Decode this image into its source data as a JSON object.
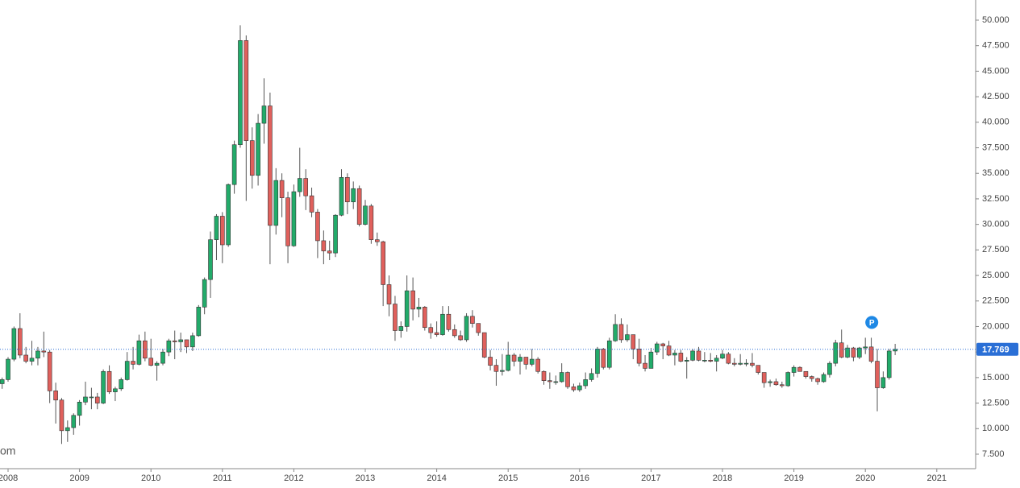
{
  "chart_data": {
    "type": "candlestick",
    "x": [
      2007.917,
      2008,
      2008.083,
      2008.167,
      2008.25,
      2008.333,
      2008.417,
      2008.5,
      2008.583,
      2008.667,
      2008.75,
      2008.833,
      2008.917,
      2009,
      2009.083,
      2009.167,
      2009.25,
      2009.333,
      2009.417,
      2009.5,
      2009.583,
      2009.667,
      2009.75,
      2009.833,
      2009.917,
      2010,
      2010.083,
      2010.167,
      2010.25,
      2010.333,
      2010.417,
      2010.5,
      2010.583,
      2010.667,
      2010.75,
      2010.833,
      2010.917,
      2011,
      2011.083,
      2011.167,
      2011.25,
      2011.333,
      2011.417,
      2011.5,
      2011.583,
      2011.667,
      2011.75,
      2011.833,
      2011.917,
      2012,
      2012.083,
      2012.167,
      2012.25,
      2012.333,
      2012.417,
      2012.5,
      2012.583,
      2012.667,
      2012.75,
      2012.833,
      2012.917,
      2013,
      2013.083,
      2013.167,
      2013.25,
      2013.333,
      2013.417,
      2013.5,
      2013.583,
      2013.667,
      2013.75,
      2013.833,
      2013.917,
      2014,
      2014.083,
      2014.167,
      2014.25,
      2014.333,
      2014.417,
      2014.5,
      2014.583,
      2014.667,
      2014.75,
      2014.833,
      2014.917,
      2015,
      2015.083,
      2015.167,
      2015.25,
      2015.333,
      2015.417,
      2015.5,
      2015.583,
      2015.667,
      2015.75,
      2015.833,
      2015.917,
      2016,
      2016.083,
      2016.167,
      2016.25,
      2016.333,
      2016.417,
      2016.5,
      2016.583,
      2016.667,
      2016.75,
      2016.833,
      2016.917,
      2017,
      2017.083,
      2017.167,
      2017.25,
      2017.333,
      2017.417,
      2017.5,
      2017.583,
      2017.667,
      2017.75,
      2017.833,
      2017.917,
      2018,
      2018.083,
      2018.167,
      2018.25,
      2018.333,
      2018.417,
      2018.5,
      2018.583,
      2018.667,
      2018.75,
      2018.833,
      2018.917,
      2019,
      2019.083,
      2019.167,
      2019.25,
      2019.333,
      2019.417,
      2019.5,
      2019.583,
      2019.667,
      2019.75,
      2019.833,
      2019.917,
      2020,
      2020.083,
      2020.167,
      2020.25,
      2020.333,
      2020.417
    ],
    "open": [
      14.4,
      14.8,
      16.8,
      19.8,
      17.2,
      16.6,
      16.9,
      17.6,
      17.5,
      13.7,
      12.8,
      9.8,
      10.1,
      11.3,
      12.6,
      13.1,
      13.1,
      12.5,
      15.6,
      13.6,
      13.9,
      14.8,
      16.6,
      16.3,
      18.6,
      16.9,
      16.2,
      16.4,
      17.5,
      18.6,
      18.5,
      18.7,
      18.0,
      19.1,
      21.9,
      24.6,
      28.5,
      30.8,
      28.0,
      33.9,
      37.8,
      48.0,
      38.2,
      34.8,
      39.9,
      41.6,
      29.9,
      34.3,
      32.6,
      27.9,
      33.2,
      34.5,
      32.8,
      31.2,
      28.4,
      27.4,
      27.2,
      30.9,
      34.6,
      32.2,
      33.5,
      30.0,
      31.8,
      28.5,
      28.3,
      24.1,
      22.2,
      19.6,
      20.0,
      23.5,
      21.7,
      21.9,
      19.9,
      19.4,
      19.2,
      21.2,
      19.7,
      19.1,
      18.7,
      21.0,
      20.3,
      19.4,
      17.0,
      16.2,
      15.6,
      15.7,
      17.2,
      16.6,
      17.0,
      16.3,
      16.8,
      15.6,
      14.7,
      14.6,
      14.6,
      15.5,
      14.1,
      13.8,
      14.2,
      14.8,
      15.4,
      17.8,
      16.0,
      18.6,
      20.2,
      18.7,
      19.2,
      17.8,
      16.4,
      15.9,
      17.5,
      18.3,
      18.1,
      17.2,
      17.4,
      16.6,
      16.7,
      17.6,
      16.7,
      16.7,
      16.6,
      16.9,
      17.3,
      16.4,
      16.3,
      16.4,
      16.4,
      16.2,
      15.5,
      14.5,
      14.6,
      14.3,
      14.2,
      15.5,
      16.0,
      15.6,
      15.1,
      14.9,
      14.6,
      15.3,
      16.4,
      18.4,
      17.0,
      17.9,
      17.0,
      17.9,
      18.0,
      16.6,
      14.0,
      15.0,
      17.6
    ],
    "high": [
      15.0,
      17.0,
      20.0,
      21.3,
      18.0,
      18.6,
      18.0,
      19.5,
      17.7,
      14.5,
      13.0,
      10.8,
      11.5,
      12.8,
      14.6,
      14.0,
      13.5,
      15.8,
      16.2,
      14.1,
      15.0,
      17.5,
      18.0,
      19.2,
      19.5,
      18.8,
      16.6,
      17.8,
      18.8,
      19.6,
      19.4,
      18.7,
      19.4,
      22.1,
      24.8,
      29.3,
      31.0,
      31.2,
      34.0,
      38.2,
      49.5,
      48.5,
      39.5,
      40.8,
      44.3,
      42.9,
      35.5,
      35.0,
      33.2,
      33.9,
      37.5,
      35.4,
      33.6,
      31.5,
      29.4,
      28.4,
      31.0,
      35.4,
      35.0,
      34.2,
      33.8,
      32.4,
      32.0,
      29.2,
      28.4,
      25.0,
      23.0,
      20.5,
      25.0,
      24.8,
      22.8,
      22.0,
      20.3,
      20.5,
      22.0,
      22.0,
      20.2,
      19.6,
      21.3,
      21.6,
      20.3,
      19.4,
      17.7,
      16.8,
      17.3,
      18.5,
      17.4,
      17.3,
      17.0,
      17.8,
      17.0,
      15.7,
      15.5,
      15.2,
      16.4,
      15.6,
      14.4,
      14.5,
      15.5,
      15.9,
      18.0,
      17.9,
      18.9,
      21.2,
      20.8,
      20.2,
      19.2,
      18.8,
      17.2,
      17.9,
      18.5,
      18.4,
      18.6,
      17.7,
      17.7,
      17.0,
      17.8,
      18.0,
      17.5,
      17.4,
      17.2,
      17.7,
      17.5,
      16.9,
      17.3,
      16.8,
      17.4,
      16.2,
      15.5,
      14.8,
      14.9,
      14.6,
      15.6,
      16.2,
      16.1,
      15.6,
      15.2,
      15.0,
      15.5,
      16.6,
      18.7,
      19.7,
      18.2,
      18.0,
      18.0,
      18.9,
      18.9,
      17.8,
      15.6,
      17.8,
      18.3
    ],
    "low": [
      13.9,
      14.6,
      16.6,
      16.9,
      16.4,
      16.2,
      16.2,
      17.0,
      12.5,
      10.5,
      8.5,
      8.7,
      9.4,
      10.3,
      12.3,
      11.9,
      11.9,
      12.4,
      13.4,
      12.7,
      13.7,
      14.7,
      15.8,
      16.2,
      16.6,
      16.1,
      14.7,
      16.2,
      17.1,
      16.8,
      17.5,
      17.4,
      17.6,
      19.0,
      21.2,
      22.8,
      26.5,
      26.2,
      27.8,
      33.0,
      37.5,
      32.3,
      33.5,
      33.8,
      37.9,
      26.1,
      29.0,
      30.7,
      26.2,
      27.8,
      32.7,
      31.4,
      30.7,
      26.7,
      26.1,
      26.5,
      26.8,
      30.8,
      31.0,
      31.5,
      29.8,
      29.9,
      28.1,
      27.9,
      22.0,
      21.0,
      18.6,
      18.9,
      19.5,
      20.6,
      20.9,
      19.6,
      18.8,
      19.0,
      19.1,
      19.5,
      18.9,
      18.6,
      18.5,
      19.9,
      19.1,
      16.9,
      15.7,
      14.2,
      15.2,
      15.6,
      16.1,
      15.3,
      15.8,
      16.1,
      15.4,
      14.3,
      13.9,
      14.3,
      14.5,
      13.9,
      13.6,
      13.6,
      13.9,
      14.6,
      15.0,
      15.8,
      15.8,
      18.5,
      18.4,
      18.5,
      16.8,
      16.1,
      15.6,
      15.9,
      17.2,
      16.8,
      17.1,
      16.2,
      16.5,
      14.9,
      16.6,
      16.6,
      16.5,
      16.5,
      15.6,
      16.8,
      16.3,
      16.1,
      16.2,
      16.1,
      16.0,
      15.3,
      14.0,
      14.1,
      14.2,
      14.0,
      14.1,
      15.1,
      15.6,
      14.9,
      14.6,
      14.3,
      14.5,
      15.0,
      16.1,
      16.9,
      16.9,
      16.6,
      16.8,
      17.3,
      16.4,
      11.7,
      13.9,
      14.8,
      17.2
    ],
    "close": [
      14.8,
      16.8,
      19.8,
      17.2,
      16.6,
      16.9,
      17.6,
      17.5,
      13.7,
      12.8,
      9.8,
      10.1,
      11.3,
      12.6,
      13.1,
      13.1,
      12.5,
      15.6,
      13.6,
      13.9,
      14.8,
      16.6,
      16.3,
      18.6,
      16.9,
      16.2,
      16.4,
      17.5,
      18.6,
      18.5,
      18.7,
      18.0,
      19.1,
      21.9,
      24.6,
      28.5,
      30.8,
      28.0,
      33.9,
      37.8,
      48.0,
      38.2,
      34.8,
      39.9,
      41.6,
      29.9,
      34.3,
      32.6,
      27.9,
      33.2,
      34.5,
      32.8,
      31.2,
      28.4,
      27.4,
      27.2,
      30.9,
      34.6,
      32.2,
      33.5,
      30.0,
      31.8,
      28.5,
      28.3,
      24.1,
      22.2,
      19.6,
      20.0,
      23.5,
      21.7,
      21.9,
      19.9,
      19.4,
      19.2,
      21.2,
      19.7,
      19.1,
      18.7,
      21.0,
      20.3,
      19.4,
      17.0,
      16.2,
      15.6,
      15.7,
      17.2,
      16.6,
      17.0,
      16.3,
      16.8,
      15.6,
      14.7,
      14.6,
      14.6,
      15.5,
      14.1,
      13.8,
      14.2,
      14.8,
      15.4,
      17.8,
      16.0,
      18.6,
      20.2,
      18.7,
      19.2,
      17.8,
      16.4,
      15.9,
      17.5,
      18.3,
      18.1,
      17.2,
      17.4,
      16.6,
      16.7,
      17.6,
      16.7,
      16.7,
      16.6,
      16.9,
      17.3,
      16.4,
      16.3,
      16.4,
      16.4,
      16.2,
      15.5,
      14.5,
      14.6,
      14.3,
      14.2,
      15.5,
      16.0,
      15.6,
      15.1,
      14.9,
      14.6,
      15.3,
      16.4,
      18.4,
      17.0,
      17.9,
      17.0,
      17.9,
      18.0,
      16.6,
      14.0,
      15.0,
      17.6,
      17.769
    ],
    "up_color": "#22ab6a",
    "down_color": "#e0605c",
    "xlim": [
      2007.887,
      2021.544
    ],
    "xticks": [
      2008,
      2009,
      2010,
      2011,
      2012,
      2013,
      2014,
      2015,
      2016,
      2017,
      2018,
      2019,
      2020,
      2021
    ],
    "ylim": [
      6.08,
      51.97
    ],
    "yticks": [
      {
        "value": 7.5,
        "label": "7.500"
      },
      {
        "value": 10,
        "label": "10.000"
      },
      {
        "value": 12.5,
        "label": "12.500"
      },
      {
        "value": 15,
        "label": "15.000"
      },
      {
        "value": 17.5,
        "label": "17.500"
      },
      {
        "value": 20,
        "label": "20.000"
      },
      {
        "value": 22.5,
        "label": "22.500"
      },
      {
        "value": 25,
        "label": "25.000"
      },
      {
        "value": 27.5,
        "label": "27.500"
      },
      {
        "value": 30,
        "label": "30.000"
      },
      {
        "value": 32.5,
        "label": "32.500"
      },
      {
        "value": 35,
        "label": "35.000"
      },
      {
        "value": 37.5,
        "label": "37.500"
      },
      {
        "value": 40,
        "label": "40.000"
      },
      {
        "value": 42.5,
        "label": "42.500"
      },
      {
        "value": 45,
        "label": "45.000"
      },
      {
        "value": 47.5,
        "label": "47.500"
      },
      {
        "value": 50,
        "label": "50.000"
      }
    ],
    "last_price": 17.769,
    "last_price_color": "#2a6fd6",
    "marker": {
      "label": "P",
      "x": 2020.09,
      "y": 20.4,
      "color": "#1e88e5"
    },
    "watermark": "om"
  }
}
